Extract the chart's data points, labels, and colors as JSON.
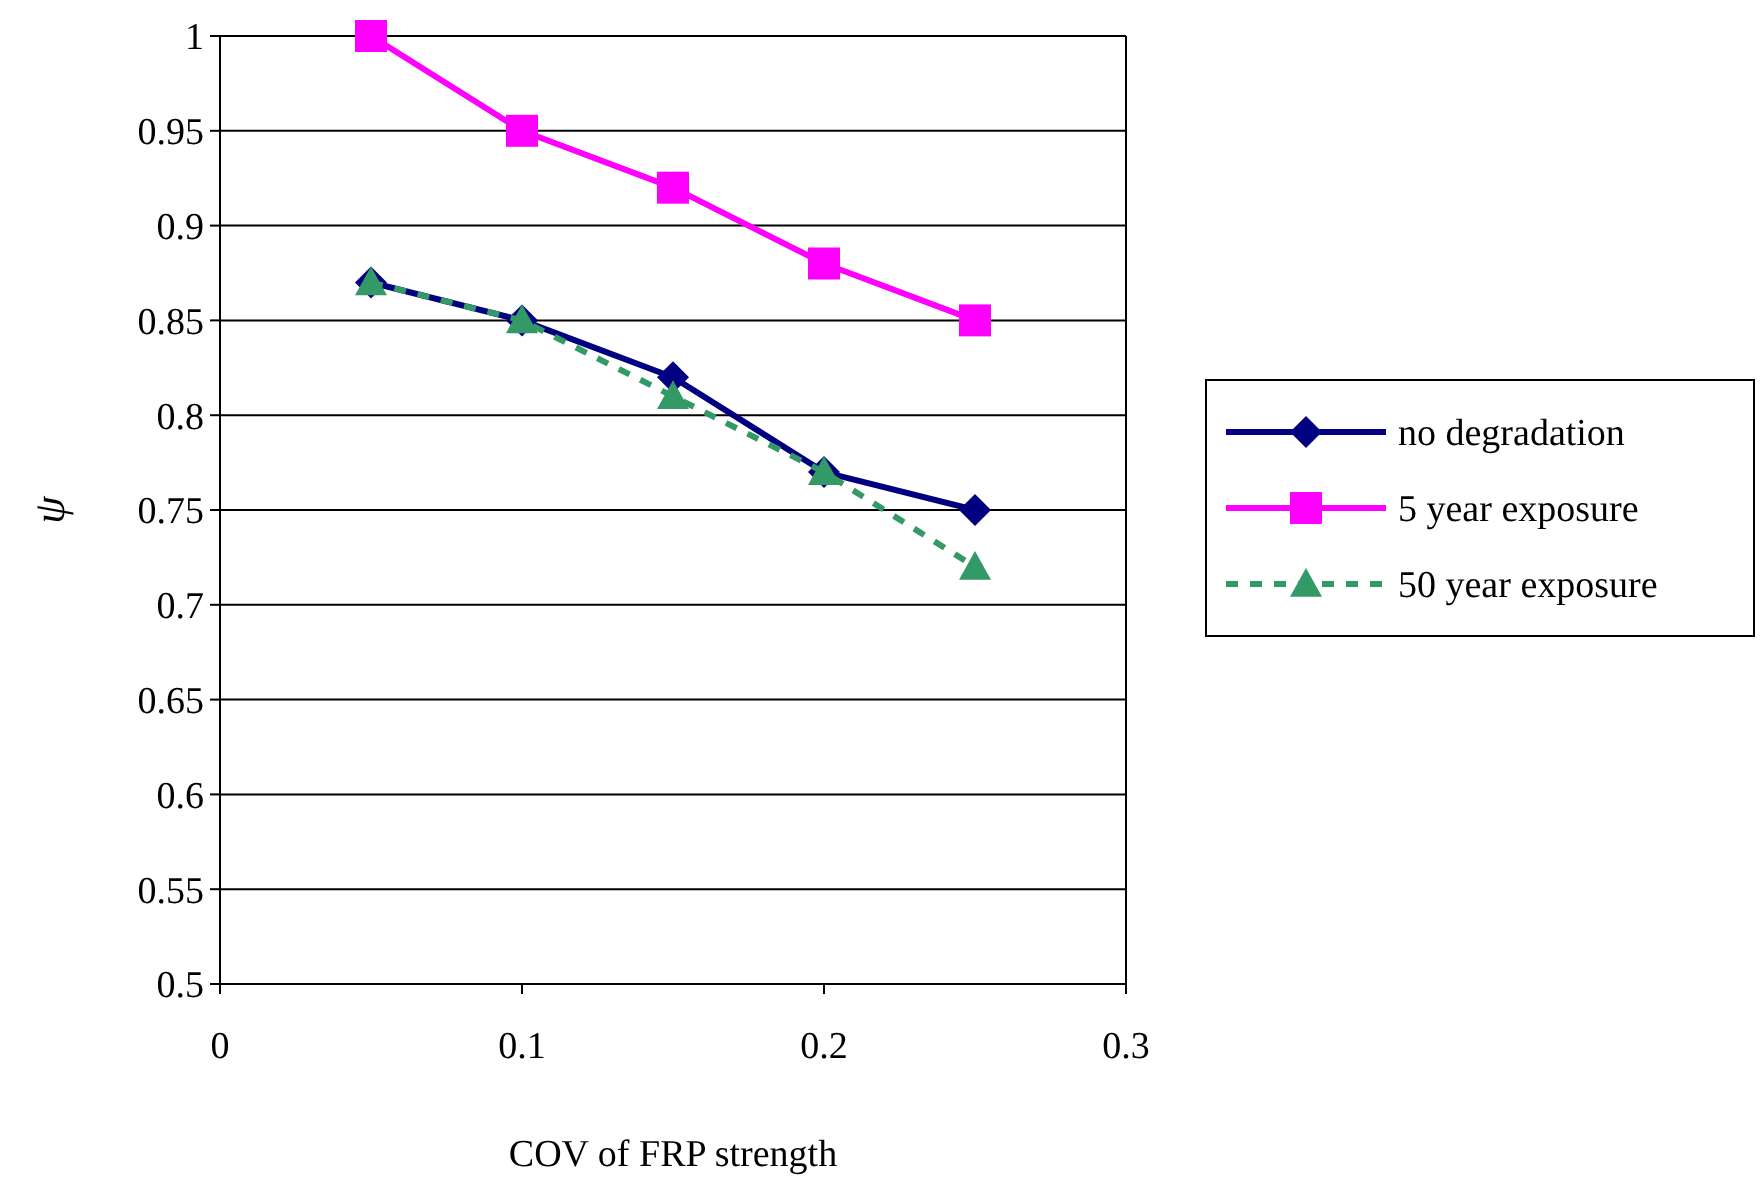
{
  "chart_data": {
    "type": "line",
    "xlabel": "COV of FRP strength",
    "ylabel": "ψ",
    "x": [
      0.05,
      0.1,
      0.15,
      0.2,
      0.25
    ],
    "xlim": [
      0,
      0.3
    ],
    "xticks": [
      0,
      0.1,
      0.2,
      0.3
    ],
    "ylim": [
      0.5,
      1
    ],
    "yticks": [
      0.5,
      0.55,
      0.6,
      0.65,
      0.7,
      0.75,
      0.8,
      0.85,
      0.9,
      0.95,
      1
    ],
    "grid": "y",
    "legend": "right",
    "series": [
      {
        "name": "no degradation",
        "color": "#000080",
        "marker": "diamond",
        "line_style": "solid",
        "values": [
          0.87,
          0.85,
          0.82,
          0.77,
          0.75
        ]
      },
      {
        "name": "5 year exposure",
        "color": "#ff00ff",
        "marker": "square",
        "line_style": "solid",
        "values": [
          1,
          0.95,
          0.92,
          0.88,
          0.85
        ]
      },
      {
        "name": "50 year exposure",
        "color": "#339966",
        "marker": "triangle",
        "line_style": "dashed",
        "values": [
          0.87,
          0.85,
          0.81,
          0.77,
          0.72
        ]
      }
    ]
  }
}
